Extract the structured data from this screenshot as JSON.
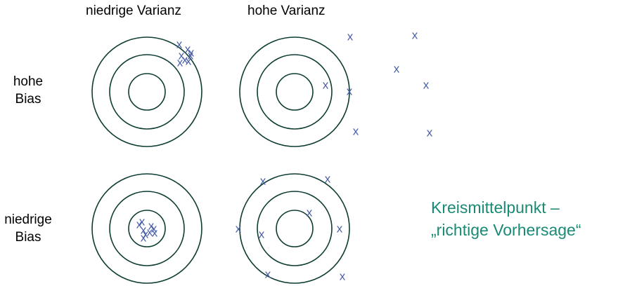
{
  "columns": {
    "low_variance": "niedrige Varianz",
    "high_variance": "hohe Varianz"
  },
  "rows": {
    "high_bias": [
      "hohe",
      "Bias"
    ],
    "low_bias": [
      "niedrige",
      "Bias"
    ]
  },
  "caption": {
    "line1": "Kreismittelpunkt –",
    "line2": "„richtige Vorhersage“",
    "color": "#1a8a74"
  },
  "marker_glyph": "x",
  "colors": {
    "rings": "#0d3d33",
    "markers": "#4a5fa8",
    "text": "#000000"
  }
}
